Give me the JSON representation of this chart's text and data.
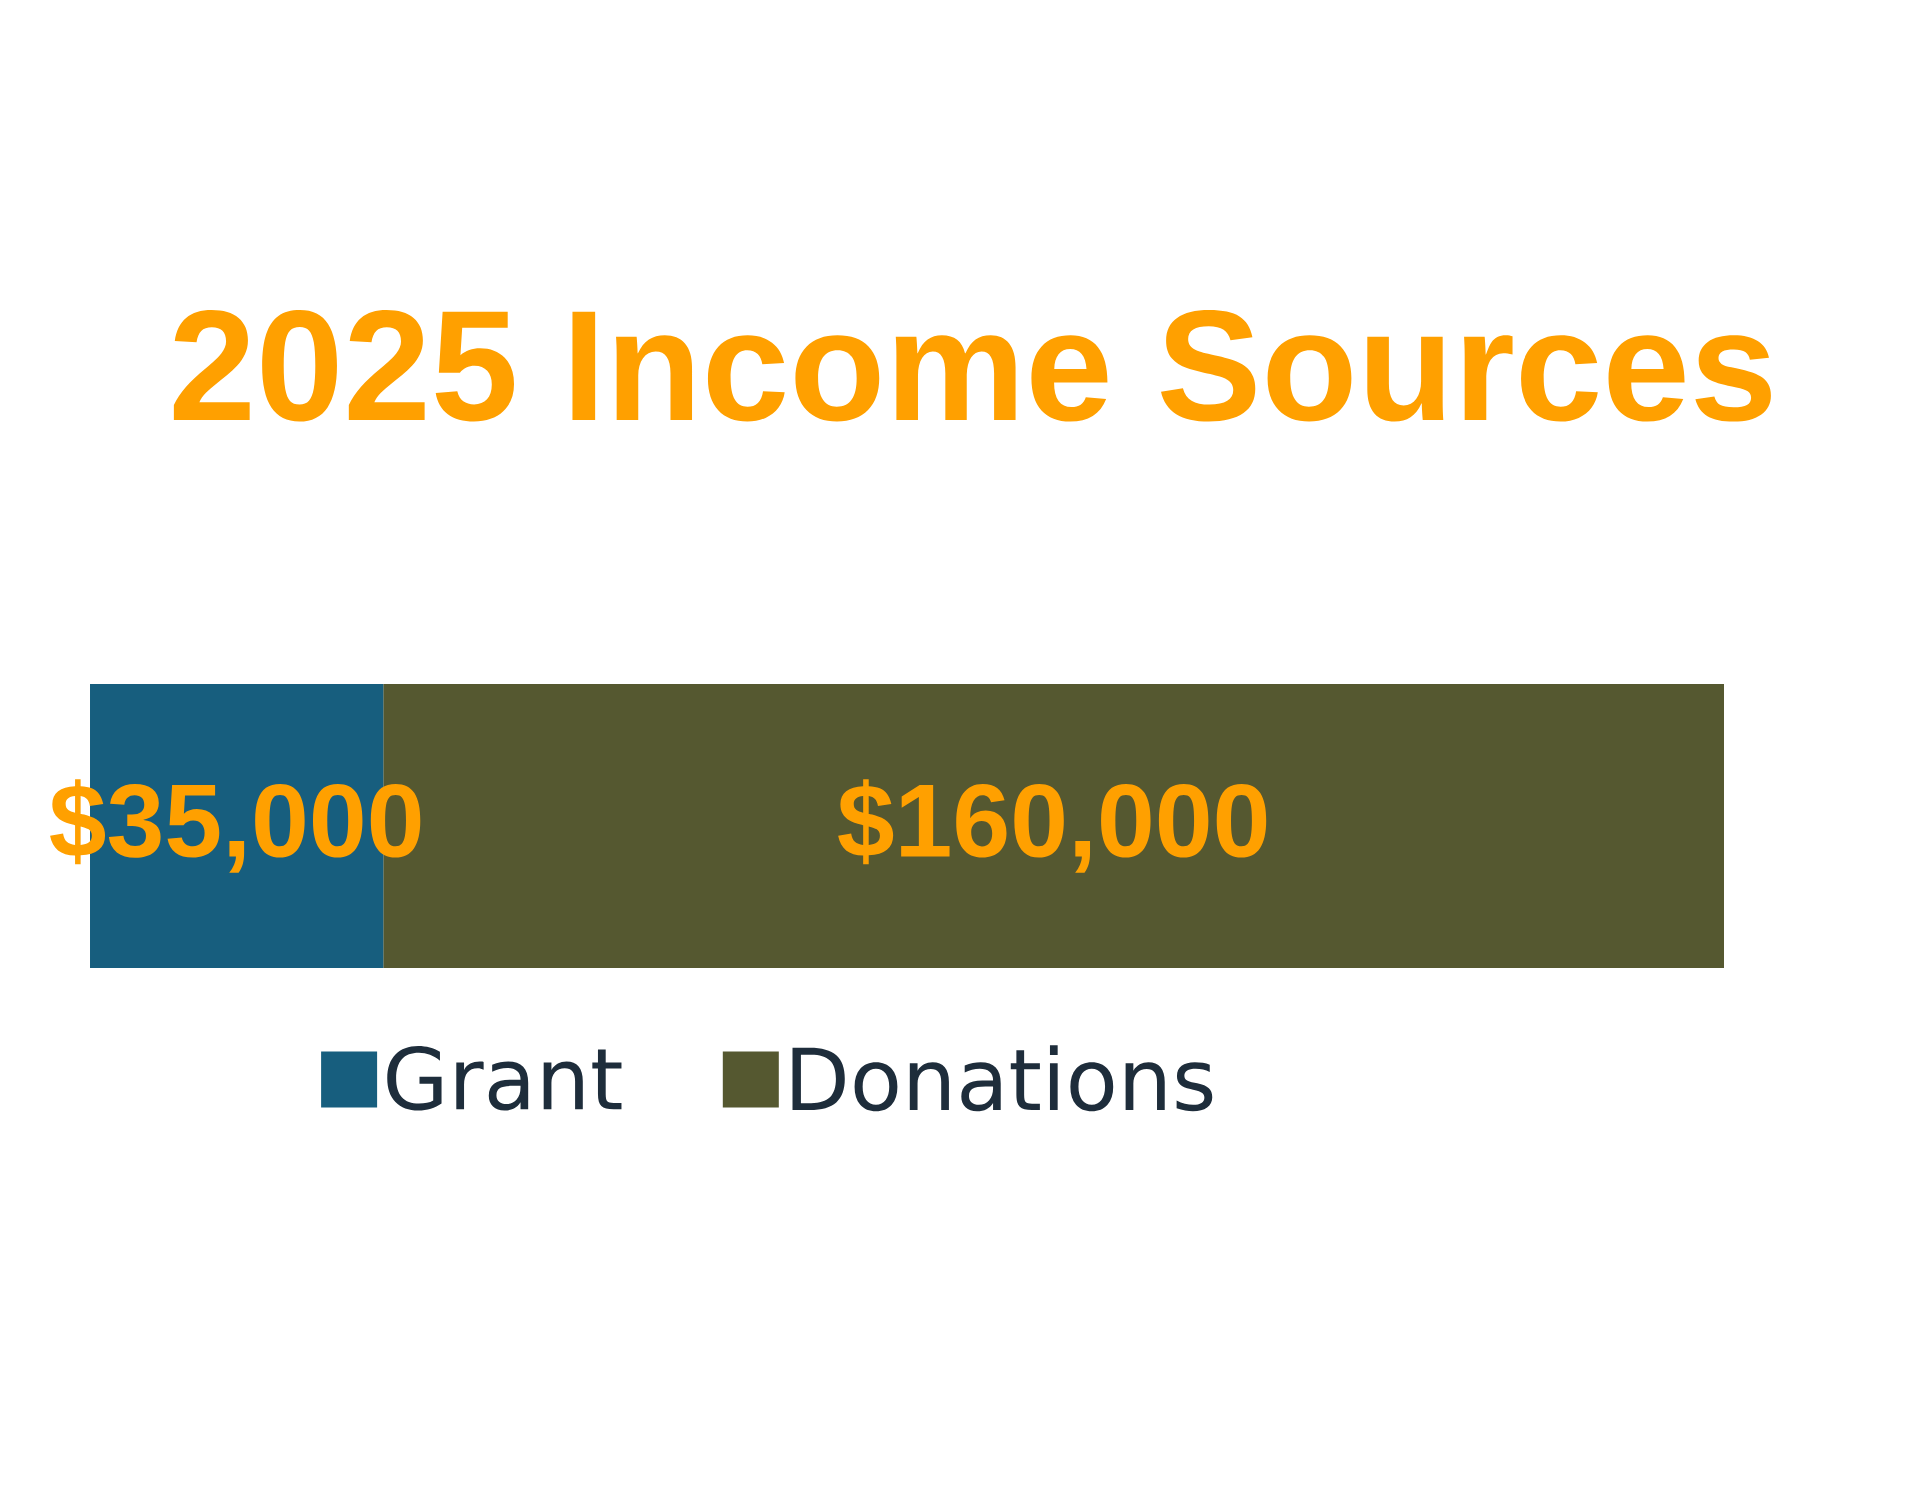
{
  "chart_data": {
    "type": "bar",
    "title": "2025 Income Sources",
    "categories": [
      null
    ],
    "orientation": "horizontal",
    "stacked": true,
    "series": [
      {
        "name": "Grant",
        "color": "#175e7e",
        "values": [
          35000
        ],
        "value_labels": [
          "$35,000"
        ]
      },
      {
        "name": "Donations",
        "color": "#555830",
        "values": [
          160000
        ],
        "value_labels": [
          "$160,000"
        ]
      }
    ],
    "xlim": [
      0,
      195000
    ],
    "legend": "bottom"
  }
}
